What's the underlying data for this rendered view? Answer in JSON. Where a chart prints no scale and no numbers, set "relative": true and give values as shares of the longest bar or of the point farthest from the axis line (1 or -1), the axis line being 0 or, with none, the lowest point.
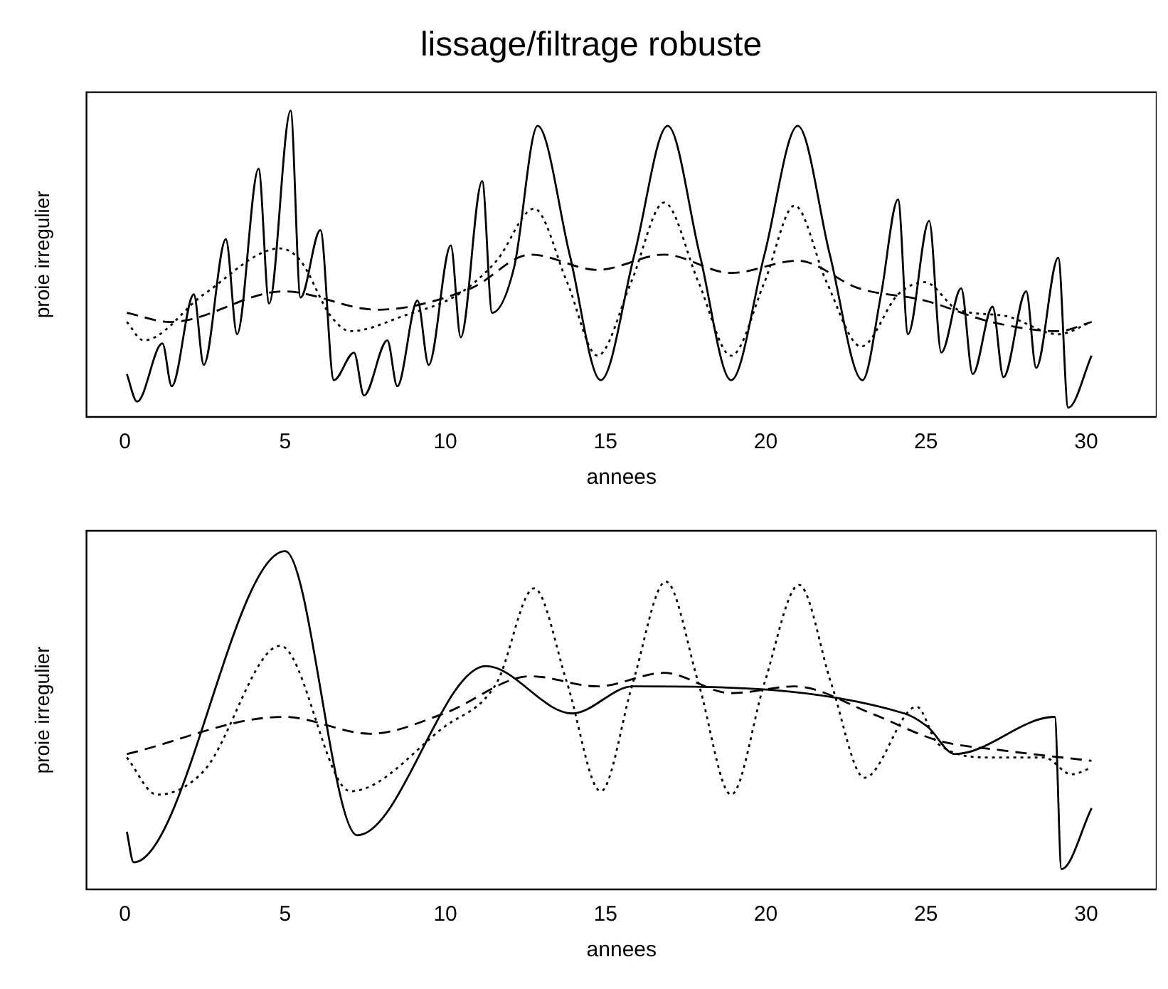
{
  "chart_data": [
    {
      "type": "line",
      "title": "lissage/filtrage robuste",
      "xlabel": "annees",
      "ylabel": "proie irregulier",
      "relative": true,
      "xlim": [
        -1.2,
        32.2
      ],
      "xticks": [
        0,
        5,
        10,
        15,
        20,
        25,
        30
      ],
      "grid": false,
      "legend": false,
      "marker": "none",
      "series": [
        {
          "color": "#000000",
          "line_style": "solid",
          "x": [
            0.06,
            0.38,
            1.17,
            1.46,
            2.15,
            2.46,
            3.15,
            3.5,
            4.17,
            4.5,
            5.17,
            5.48,
            6.1,
            6.52,
            7.15,
            7.46,
            8.19,
            8.5,
            9.13,
            9.48,
            10.17,
            10.48,
            11.15,
            11.46,
            12.15,
            12.88,
            13.88,
            14.85,
            15.9,
            16.94,
            17.94,
            18.92,
            19.96,
            21.0,
            22.0,
            23.02,
            23.6,
            24.13,
            24.44,
            25.1,
            25.48,
            26.1,
            26.46,
            27.08,
            27.42,
            28.13,
            28.44,
            29.13,
            29.44,
            30.17
          ],
          "values": [
            0.14,
            0.05,
            0.24,
            0.1,
            0.4,
            0.17,
            0.58,
            0.27,
            0.81,
            0.37,
            1.0,
            0.39,
            0.61,
            0.12,
            0.21,
            0.07,
            0.25,
            0.1,
            0.38,
            0.17,
            0.56,
            0.26,
            0.77,
            0.34,
            0.49,
            0.95,
            0.53,
            0.12,
            0.53,
            0.95,
            0.53,
            0.12,
            0.53,
            0.95,
            0.53,
            0.12,
            0.4,
            0.71,
            0.27,
            0.64,
            0.21,
            0.42,
            0.14,
            0.36,
            0.13,
            0.41,
            0.16,
            0.52,
            0.03,
            0.2
          ]
        },
        {
          "color": "#000000",
          "line_style": "dotted",
          "x": [
            0.06,
            0.58,
            2.46,
            4.85,
            5.48,
            6.42,
            7.04,
            8.7,
            10.4,
            11.6,
            12.77,
            13.8,
            14.75,
            15.8,
            16.83,
            17.9,
            18.92,
            19.96,
            20.9,
            21.9,
            22.98,
            24.13,
            24.96,
            26.0,
            27.46,
            29.13,
            30.17
          ],
          "values": [
            0.31,
            0.25,
            0.4,
            0.55,
            0.51,
            0.33,
            0.28,
            0.33,
            0.4,
            0.51,
            0.68,
            0.44,
            0.2,
            0.44,
            0.7,
            0.44,
            0.2,
            0.44,
            0.69,
            0.44,
            0.23,
            0.4,
            0.44,
            0.35,
            0.33,
            0.27,
            0.31
          ]
        },
        {
          "color": "#000000",
          "line_style": "dashed",
          "x": [
            0.06,
            1.42,
            4.96,
            7.88,
            10.8,
            12.67,
            14.75,
            16.83,
            18.92,
            21.0,
            22.9,
            24.96,
            27.04,
            29.13,
            30.17
          ],
          "values": [
            0.34,
            0.31,
            0.41,
            0.35,
            0.42,
            0.53,
            0.48,
            0.53,
            0.47,
            0.51,
            0.42,
            0.38,
            0.31,
            0.28,
            0.31
          ]
        }
      ]
    },
    {
      "type": "line",
      "xlabel": "annees",
      "ylabel": "proie irregulier",
      "relative": true,
      "xlim": [
        -1.2,
        32.2
      ],
      "xticks": [
        0,
        5,
        10,
        15,
        20,
        25,
        30
      ],
      "grid": false,
      "legend": false,
      "marker": "none",
      "series": [
        {
          "color": "#000000",
          "line_style": "solid",
          "x": [
            0.06,
            0.27,
            5.0,
            7.25,
            11.27,
            13.96,
            15.85,
            24.33,
            25.06,
            25.9,
            29.02,
            29.23,
            30.17
          ],
          "values": [
            0.17,
            0.08,
            1.0,
            0.16,
            0.66,
            0.52,
            0.6,
            0.52,
            0.48,
            0.4,
            0.51,
            0.06,
            0.24
          ]
        },
        {
          "color": "#000000",
          "line_style": "dotted",
          "x": [
            0.06,
            1.0,
            2.46,
            4.85,
            7.04,
            9.96,
            11.6,
            12.77,
            13.8,
            14.85,
            15.85,
            16.88,
            17.9,
            18.92,
            19.96,
            21.04,
            22.04,
            23.08,
            24.71,
            25.38,
            27.04,
            28.7,
            29.54,
            30.17
          ],
          "values": [
            0.39,
            0.28,
            0.35,
            0.72,
            0.29,
            0.48,
            0.61,
            0.89,
            0.61,
            0.29,
            0.61,
            0.91,
            0.61,
            0.28,
            0.61,
            0.9,
            0.61,
            0.33,
            0.54,
            0.43,
            0.39,
            0.39,
            0.34,
            0.36
          ]
        },
        {
          "color": "#000000",
          "line_style": "dashed",
          "x": [
            0.06,
            4.96,
            7.67,
            9.96,
            12.67,
            14.75,
            16.83,
            18.92,
            20.9,
            23.3,
            25.38,
            27.46,
            30.17
          ],
          "values": [
            0.4,
            0.51,
            0.46,
            0.52,
            0.63,
            0.6,
            0.64,
            0.58,
            0.6,
            0.52,
            0.44,
            0.41,
            0.38
          ]
        }
      ]
    }
  ]
}
